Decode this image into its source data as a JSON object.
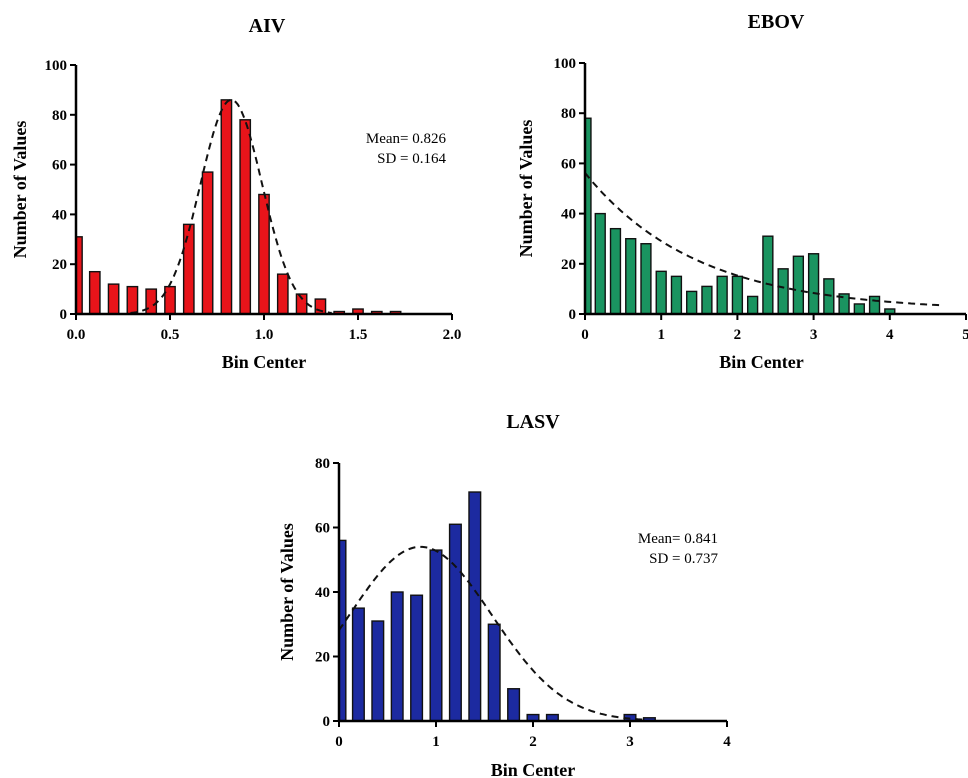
{
  "chart_data": [
    {
      "type": "bar",
      "title": "AIV",
      "xlabel": "Bin Center",
      "ylabel": "Number of Values",
      "xlim": [
        0,
        2.0
      ],
      "ylim": [
        0,
        100
      ],
      "xticks": [
        0.0,
        0.5,
        1.0,
        1.5,
        2.0
      ],
      "xtick_labels": [
        "0.0",
        "0.5",
        "1.0",
        "1.5",
        "2.0"
      ],
      "yticks": [
        0,
        20,
        40,
        60,
        80,
        100
      ],
      "ytick_labels": [
        "0",
        "20",
        "40",
        "60",
        "80",
        "100"
      ],
      "bar_width": 0.055,
      "color": "#e8141a",
      "bins": [
        0.0,
        0.1,
        0.2,
        0.3,
        0.4,
        0.5,
        0.6,
        0.7,
        0.8,
        0.9,
        1.0,
        1.1,
        1.2,
        1.3,
        1.4,
        1.5,
        1.6,
        1.7
      ],
      "values": [
        31,
        17,
        12,
        11,
        10,
        11,
        36,
        57,
        86,
        78,
        48,
        16,
        8,
        6,
        1,
        2,
        1,
        1
      ],
      "fit": {
        "type": "normal",
        "mean": 0.826,
        "sd": 0.164,
        "peak": 86
      },
      "stats": [
        "Mean= 0.826",
        "SD = 0.164"
      ],
      "grid": false
    },
    {
      "type": "bar",
      "title": "EBOV",
      "xlabel": "Bin Center",
      "ylabel": "Number of Values",
      "xlim": [
        0,
        5
      ],
      "ylim": [
        0,
        100
      ],
      "xticks": [
        0,
        1,
        2,
        3,
        4,
        5
      ],
      "xtick_labels": [
        "0",
        "1",
        "2",
        "3",
        "4",
        "5"
      ],
      "yticks": [
        0,
        20,
        40,
        60,
        80,
        100
      ],
      "ytick_labels": [
        "0",
        "20",
        "40",
        "60",
        "80",
        "100"
      ],
      "bar_width": 0.13,
      "color": "#1a9460",
      "bins": [
        0.0,
        0.2,
        0.4,
        0.6,
        0.8,
        1.0,
        1.2,
        1.4,
        1.6,
        1.8,
        2.0,
        2.2,
        2.4,
        2.6,
        2.8,
        3.0,
        3.2,
        3.4,
        3.6,
        3.8,
        4.0,
        4.2,
        4.4,
        4.6
      ],
      "values": [
        78,
        40,
        34,
        30,
        28,
        17,
        15,
        9,
        11,
        15,
        15,
        7,
        31,
        18,
        23,
        24,
        14,
        8,
        4,
        7,
        2,
        0,
        0,
        0
      ],
      "fit": {
        "type": "exponential",
        "a": 55,
        "rate": 0.68,
        "xmax": 4.65
      },
      "stats": [],
      "grid": false
    },
    {
      "type": "bar",
      "title": "LASV",
      "xlabel": "Bin Center",
      "ylabel": "Number of Values",
      "xlim": [
        0,
        4
      ],
      "ylim": [
        0,
        80
      ],
      "xticks": [
        0,
        1,
        2,
        3,
        4
      ],
      "xtick_labels": [
        "0",
        "1",
        "2",
        "3",
        "4"
      ],
      "yticks": [
        0,
        20,
        40,
        60,
        80
      ],
      "ytick_labels": [
        "0",
        "20",
        "40",
        "60",
        "80"
      ],
      "bar_width": 0.12,
      "color": "#1c2aa0",
      "bins": [
        0.0,
        0.2,
        0.4,
        0.6,
        0.8,
        1.0,
        1.2,
        1.4,
        1.6,
        1.8,
        2.0,
        2.2,
        3.0,
        3.2
      ],
      "values": [
        56,
        35,
        31,
        40,
        39,
        53,
        61,
        71,
        30,
        10,
        2,
        2,
        2,
        1
      ],
      "fit": {
        "type": "normal",
        "mean": 0.841,
        "sd": 0.737,
        "peak": 54
      },
      "stats": [
        "Mean= 0.841",
        "SD = 0.737"
      ],
      "grid": false
    }
  ]
}
